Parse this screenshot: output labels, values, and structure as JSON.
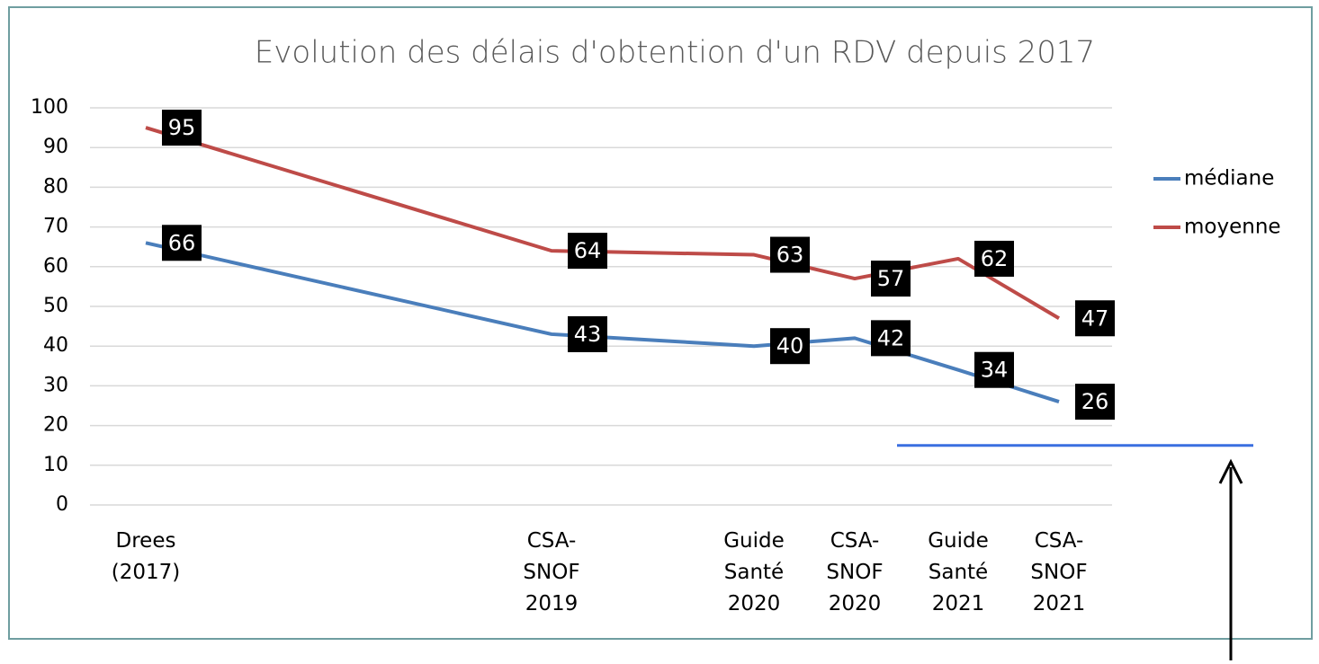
{
  "chart_data": {
    "type": "line",
    "title": "Evolution des délais d'obtention d'un RDV depuis 2017",
    "categories": [
      "Drees (2017)",
      "CSA-SNOF 2019",
      "Guide Santé 2020",
      "CSA-SNOF 2020",
      "Guide Santé 2021",
      "CSA-SNOF 2021"
    ],
    "series": [
      {
        "name": "médiane",
        "color": "#4a7ebb",
        "values": [
          66,
          43,
          40,
          42,
          34,
          26
        ]
      },
      {
        "name": "moyenne",
        "color": "#be4b48",
        "values": [
          95,
          64,
          63,
          57,
          62,
          47
        ]
      }
    ],
    "ylim": [
      0,
      100
    ],
    "yticks": [
      0,
      10,
      20,
      30,
      40,
      50,
      60,
      70,
      80,
      90,
      100
    ],
    "grid": true,
    "legend": "right",
    "reference_line": {
      "value": 15,
      "color": "#3a6fe0"
    }
  }
}
